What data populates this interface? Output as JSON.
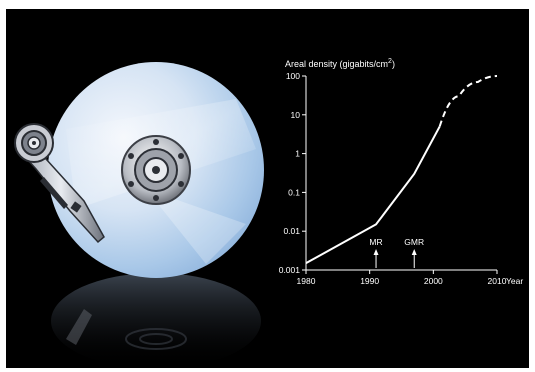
{
  "chart_data": {
    "type": "line",
    "title": "",
    "ylabel_main": "Areal density (gigabits/cm",
    "ylabel_sup": "2",
    "ylabel_tail": ")",
    "xlabel": "Year",
    "x_scale": "linear",
    "y_scale": "log",
    "xlim": [
      1980,
      2010
    ],
    "ylim": [
      0.001,
      100
    ],
    "x_ticks": [
      "1980",
      "1990",
      "2000",
      "2010"
    ],
    "x_tick_values": [
      1980,
      1990,
      2000,
      2010
    ],
    "y_ticks": [
      "100",
      "10",
      "1",
      "0.1",
      "0.01",
      "0.001"
    ],
    "y_tick_values": [
      100,
      10,
      1,
      0.1,
      0.01,
      0.001
    ],
    "grid": false,
    "series": [
      {
        "style": "solid",
        "color": "#ffffff",
        "x": [
          1980,
          1991,
          1997,
          2001
        ],
        "y": [
          0.0015,
          0.015,
          0.3,
          5
        ]
      },
      {
        "style": "dashed",
        "color": "#ffffff",
        "x": [
          2001,
          2004,
          2007,
          2010
        ],
        "y": [
          5,
          30,
          70,
          100
        ]
      }
    ],
    "annotations": [
      {
        "label": "MR",
        "x": 1991
      },
      {
        "label": "GMR",
        "x": 1997
      }
    ]
  },
  "colors": {
    "background": "#000000",
    "platter_light": "#eef3fb",
    "platter_blue": "#a9c8e8",
    "axis": "#ffffff"
  },
  "icons": [
    "hard-disk-platter-illustration",
    "read-write-arm-illustration",
    "platter-reflection-illustration"
  ]
}
